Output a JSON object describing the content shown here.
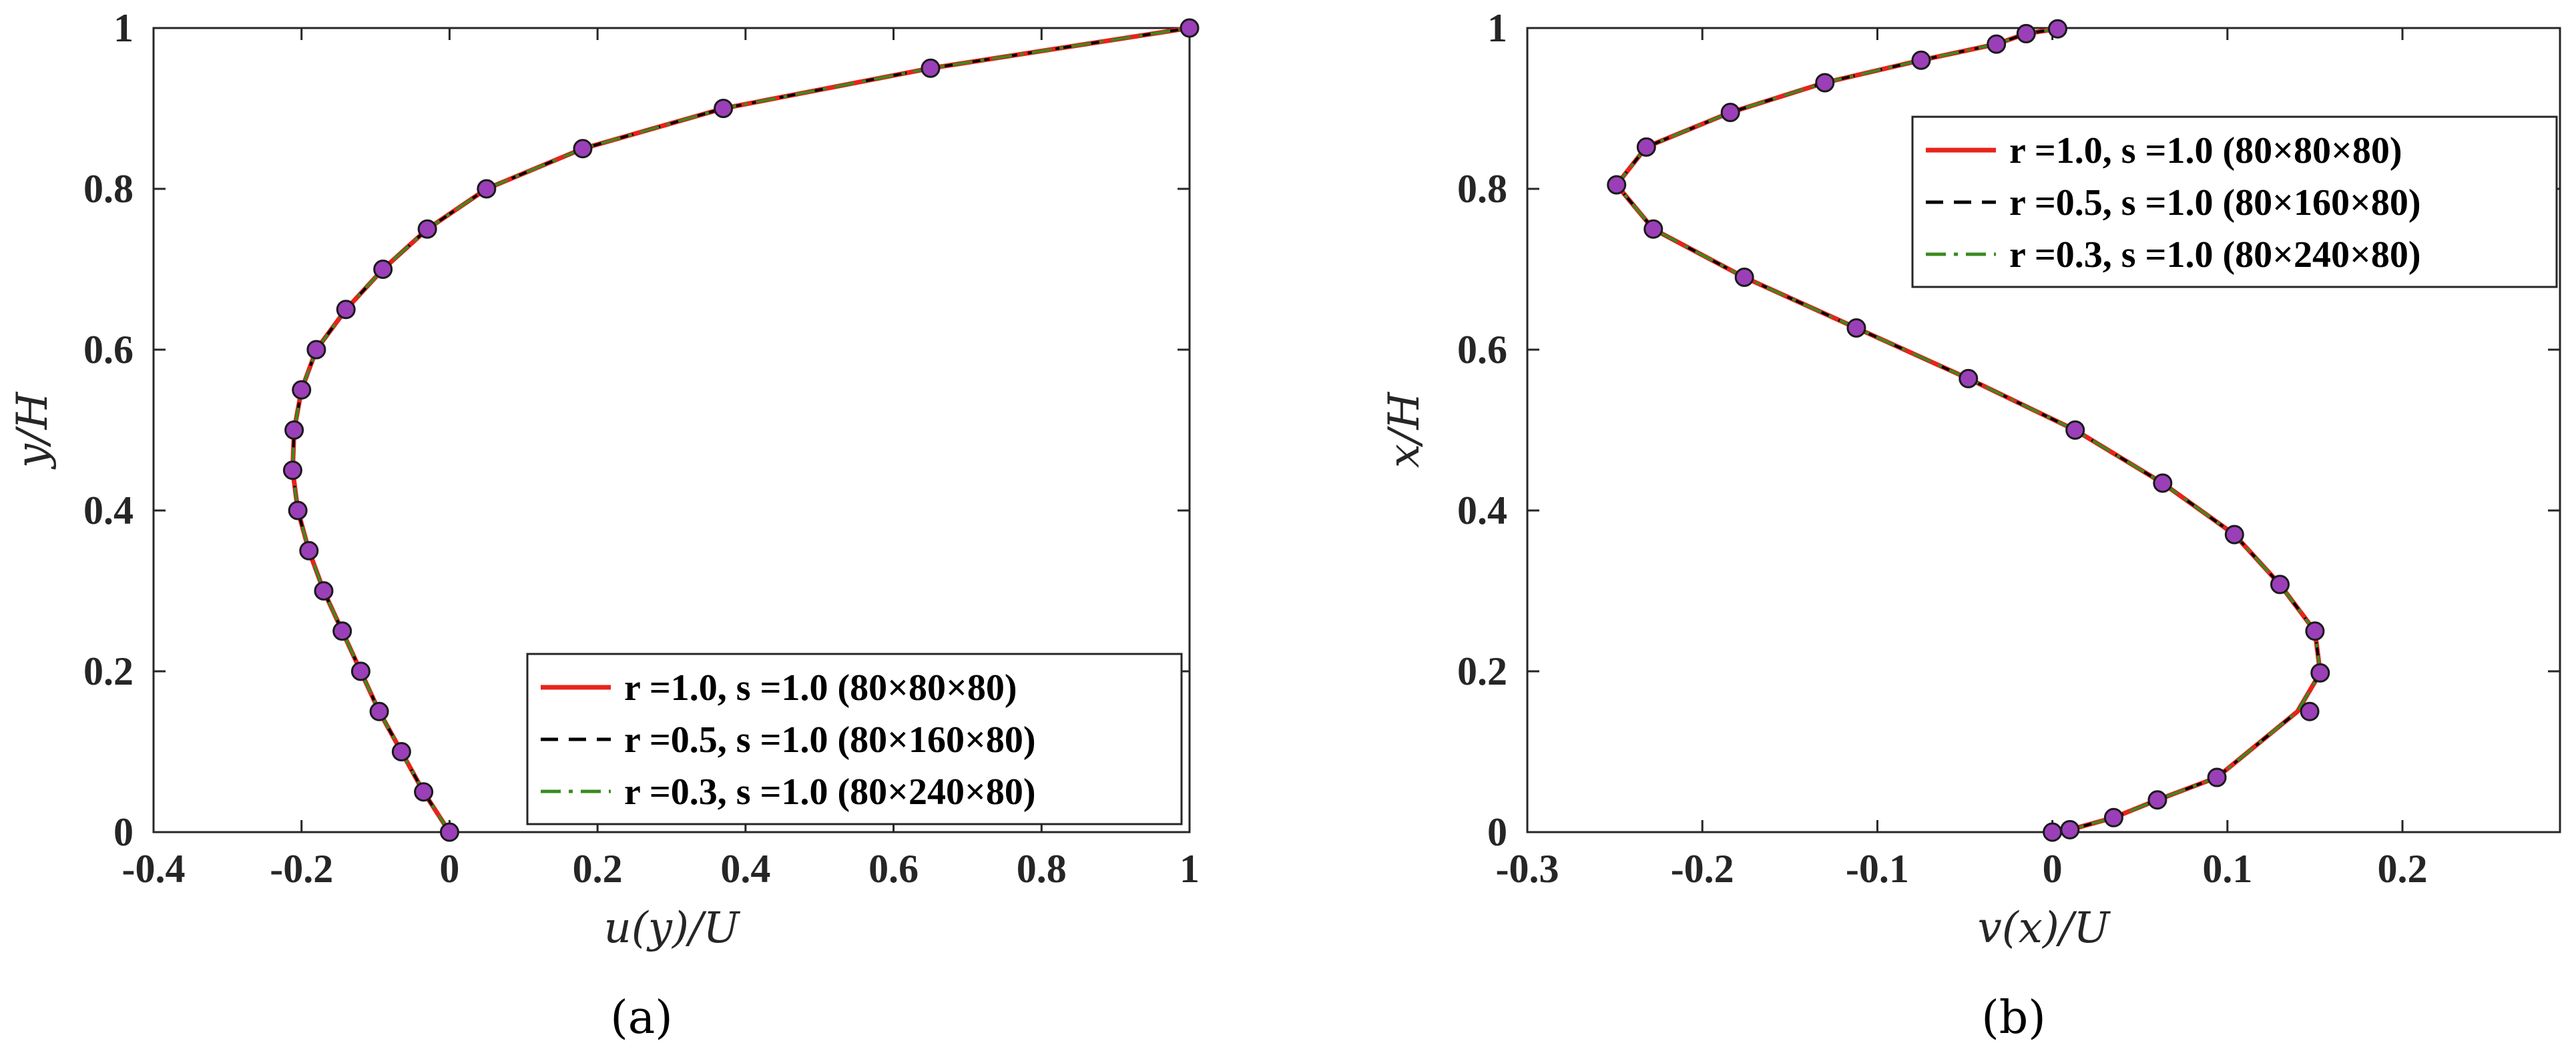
{
  "chart_data": [
    {
      "type": "line",
      "panel_label": "(a)",
      "xlabel": "u(y)/U",
      "ylabel": "y/H",
      "xlim": [
        -0.4,
        1.0
      ],
      "ylim": [
        0,
        1
      ],
      "xticks": [
        "-0.4",
        "-0.2",
        "0",
        "0.2",
        "0.4",
        "0.6",
        "0.8",
        "1"
      ],
      "yticks": [
        "0",
        "0.2",
        "0.4",
        "0.6",
        "0.8",
        "1"
      ],
      "legend_position": "bottom-right",
      "series": [
        {
          "name": "r =1.0, s =1.0 (80×80×80)",
          "color": "#e8231b",
          "dash": "solid",
          "x": [
            0,
            -0.035,
            -0.065,
            -0.095,
            -0.12,
            -0.145,
            -0.17,
            -0.19,
            -0.205,
            -0.212,
            -0.21,
            -0.2,
            -0.18,
            -0.14,
            -0.09,
            -0.03,
            0.05,
            0.18,
            0.37,
            0.65,
            1.0
          ],
          "y": [
            0,
            0.05,
            0.1,
            0.15,
            0.2,
            0.25,
            0.3,
            0.35,
            0.4,
            0.45,
            0.5,
            0.55,
            0.6,
            0.65,
            0.7,
            0.75,
            0.8,
            0.85,
            0.9,
            0.95,
            1.0
          ]
        },
        {
          "name": "r =0.5, s =1.0 (80×160×80)",
          "color": "#000000",
          "dash": "dashed",
          "x": [
            0,
            -0.035,
            -0.065,
            -0.095,
            -0.12,
            -0.145,
            -0.17,
            -0.19,
            -0.205,
            -0.212,
            -0.21,
            -0.2,
            -0.18,
            -0.14,
            -0.09,
            -0.03,
            0.05,
            0.18,
            0.37,
            0.65,
            1.0
          ],
          "y": [
            0,
            0.05,
            0.1,
            0.15,
            0.2,
            0.25,
            0.3,
            0.35,
            0.4,
            0.45,
            0.5,
            0.55,
            0.6,
            0.65,
            0.7,
            0.75,
            0.8,
            0.85,
            0.9,
            0.95,
            1.0
          ]
        },
        {
          "name": "r =0.3, s =1.0 (80×240×80)",
          "color": "#3a8a1f",
          "dash": "dashdot",
          "x": [
            0,
            -0.035,
            -0.065,
            -0.095,
            -0.12,
            -0.145,
            -0.17,
            -0.19,
            -0.205,
            -0.212,
            -0.21,
            -0.2,
            -0.18,
            -0.14,
            -0.09,
            -0.03,
            0.05,
            0.18,
            0.37,
            0.65,
            1.0
          ],
          "y": [
            0,
            0.05,
            0.1,
            0.15,
            0.2,
            0.25,
            0.3,
            0.35,
            0.4,
            0.45,
            0.5,
            0.55,
            0.6,
            0.65,
            0.7,
            0.75,
            0.8,
            0.85,
            0.9,
            0.95,
            1.0
          ]
        }
      ],
      "markers": {
        "x": [
          0,
          -0.035,
          -0.065,
          -0.095,
          -0.12,
          -0.145,
          -0.17,
          -0.19,
          -0.205,
          -0.212,
          -0.21,
          -0.2,
          -0.18,
          -0.14,
          -0.09,
          -0.03,
          0.05,
          0.18,
          0.37,
          0.65,
          1.0
        ],
        "y": [
          0,
          0.05,
          0.1,
          0.15,
          0.2,
          0.25,
          0.3,
          0.35,
          0.4,
          0.45,
          0.5,
          0.55,
          0.6,
          0.65,
          0.7,
          0.75,
          0.8,
          0.85,
          0.9,
          0.95,
          1.0
        ],
        "color": "#9b3fb8"
      }
    },
    {
      "type": "line",
      "panel_label": "(b)",
      "xlabel": "v(x)/U",
      "ylabel": "x/H",
      "xlim": [
        -0.3,
        0.29
      ],
      "ylim": [
        0,
        1
      ],
      "xticks": [
        "-0.3",
        "-0.2",
        "-0.1",
        "0",
        "0.1",
        "0.2"
      ],
      "yticks": [
        "0",
        "0.2",
        "0.4",
        "0.6",
        "0.8",
        "1"
      ],
      "legend_position": "top-right",
      "series": [
        {
          "name": "r =1.0, s =1.0 (80×80×80)",
          "color": "#e8231b",
          "dash": "solid",
          "x": [
            0,
            0.01,
            0.035,
            0.06,
            0.094,
            0.14,
            0.153,
            0.15,
            0.13,
            0.104,
            0.063,
            0.013,
            -0.048,
            -0.112,
            -0.176,
            -0.228,
            -0.249,
            -0.232,
            -0.184,
            -0.13,
            -0.075,
            -0.032,
            -0.015,
            0.003
          ],
          "y": [
            0,
            0.003,
            0.018,
            0.04,
            0.068,
            0.15,
            0.198,
            0.25,
            0.308,
            0.37,
            0.434,
            0.5,
            0.564,
            0.627,
            0.69,
            0.75,
            0.805,
            0.852,
            0.895,
            0.932,
            0.96,
            0.98,
            0.993,
            0.999
          ]
        },
        {
          "name": "r =0.5, s =1.0 (80×160×80)",
          "color": "#000000",
          "dash": "dashed",
          "x": [
            0,
            0.01,
            0.035,
            0.06,
            0.094,
            0.14,
            0.153,
            0.15,
            0.13,
            0.104,
            0.063,
            0.013,
            -0.048,
            -0.112,
            -0.176,
            -0.228,
            -0.249,
            -0.232,
            -0.184,
            -0.13,
            -0.075,
            -0.032,
            -0.015,
            0.003
          ],
          "y": [
            0,
            0.003,
            0.018,
            0.04,
            0.068,
            0.15,
            0.198,
            0.25,
            0.308,
            0.37,
            0.434,
            0.5,
            0.564,
            0.627,
            0.69,
            0.75,
            0.805,
            0.852,
            0.895,
            0.932,
            0.96,
            0.98,
            0.993,
            0.999
          ]
        },
        {
          "name": "r =0.3, s =1.0 (80×240×80)",
          "color": "#3a8a1f",
          "dash": "dashdot",
          "x": [
            0,
            0.01,
            0.035,
            0.06,
            0.094,
            0.14,
            0.153,
            0.15,
            0.13,
            0.104,
            0.063,
            0.013,
            -0.048,
            -0.112,
            -0.176,
            -0.228,
            -0.249,
            -0.232,
            -0.184,
            -0.13,
            -0.075,
            -0.032,
            -0.015,
            0.003
          ],
          "y": [
            0,
            0.003,
            0.018,
            0.04,
            0.068,
            0.15,
            0.198,
            0.25,
            0.308,
            0.37,
            0.434,
            0.5,
            0.564,
            0.627,
            0.69,
            0.75,
            0.805,
            0.852,
            0.895,
            0.932,
            0.96,
            0.98,
            0.993,
            0.999
          ]
        }
      ],
      "markers": {
        "x": [
          0,
          0.01,
          0.035,
          0.06,
          0.094,
          0.147,
          0.153,
          0.15,
          0.13,
          0.104,
          0.063,
          0.013,
          -0.048,
          -0.112,
          -0.176,
          -0.228,
          -0.249,
          -0.232,
          -0.184,
          -0.13,
          -0.075,
          -0.032,
          -0.015,
          0.003
        ],
        "y": [
          0,
          0.003,
          0.018,
          0.04,
          0.068,
          0.15,
          0.198,
          0.25,
          0.308,
          0.37,
          0.434,
          0.5,
          0.564,
          0.627,
          0.69,
          0.75,
          0.805,
          0.852,
          0.895,
          0.932,
          0.96,
          0.98,
          0.993,
          0.999
        ],
        "color": "#9b3fb8"
      }
    }
  ]
}
